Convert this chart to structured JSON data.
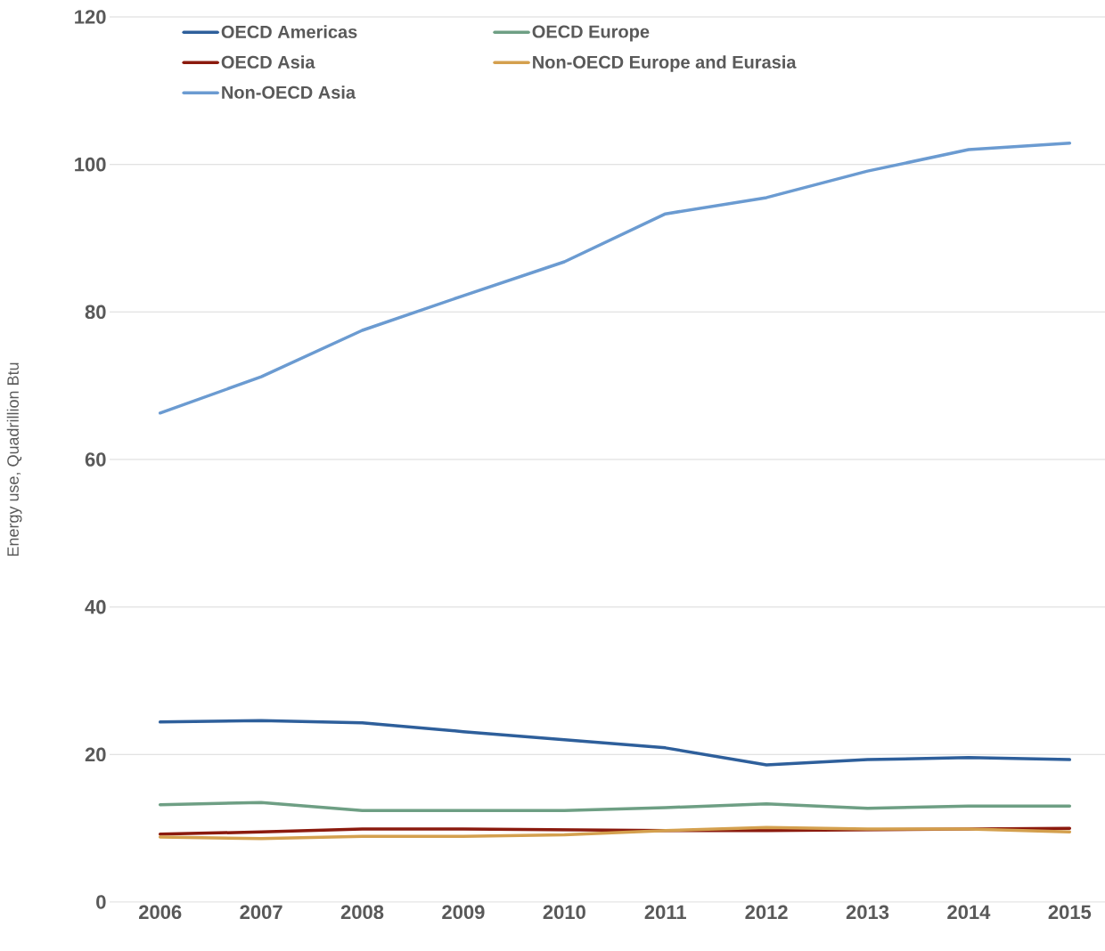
{
  "chart_data": {
    "type": "line",
    "ylabel": "Energy use, Quadrillion Btu",
    "categories": [
      "2006",
      "2007",
      "2008",
      "2009",
      "2010",
      "2011",
      "2012",
      "2013",
      "2014",
      "2015"
    ],
    "series": [
      {
        "name": "OECD Americas",
        "color": "#2e5f9b",
        "values": [
          24.4,
          24.6,
          24.3,
          23.1,
          22.0,
          20.9,
          18.6,
          19.3,
          19.6,
          19.3
        ]
      },
      {
        "name": "OECD Europe",
        "color": "#6e9f84",
        "values": [
          13.2,
          13.5,
          12.4,
          12.4,
          12.4,
          12.8,
          13.3,
          12.7,
          13.0,
          13.0
        ]
      },
      {
        "name": "OECD Asia",
        "color": "#8b1a0e",
        "values": [
          9.2,
          9.5,
          9.9,
          9.9,
          9.8,
          9.7,
          9.7,
          9.8,
          9.9,
          10.0
        ]
      },
      {
        "name": "Non-OECD Europe and Eurasia",
        "color": "#d4a04e",
        "values": [
          8.8,
          8.6,
          8.9,
          8.9,
          9.1,
          9.7,
          10.1,
          9.9,
          9.9,
          9.5
        ]
      },
      {
        "name": "Non-OECD Asia",
        "color": "#6b9bd1",
        "values": [
          66.3,
          71.2,
          77.5,
          82.2,
          86.8,
          93.3,
          95.5,
          99.1,
          102.0,
          102.9
        ]
      }
    ],
    "ylim": [
      0,
      120
    ],
    "yticks": [
      0,
      20,
      40,
      60,
      80,
      100,
      120
    ],
    "grid": "y",
    "legend": "top",
    "marker": "none",
    "line_style": "solid"
  }
}
